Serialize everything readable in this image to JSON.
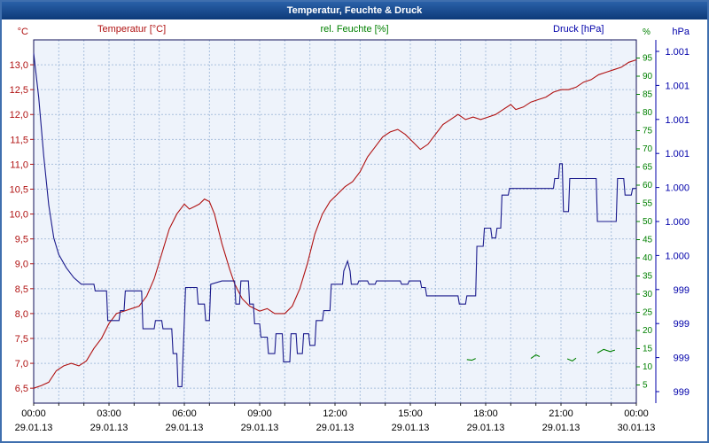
{
  "window": {
    "title": "Temperatur, Feuchte & Druck"
  },
  "header": {
    "temp_label": "Temperatur [°C]",
    "hum_label": "rel. Feuchte [%]",
    "pres_label": "Druck [hPa]"
  },
  "chart_data": {
    "type": "line",
    "title": "Temperatur, Feuchte & Druck",
    "style": {
      "plot_bg": "#eef3fb",
      "grid": "#a9c0dd",
      "plot_border": "#12125a"
    },
    "x_axis": {
      "hours_span": [
        0,
        24
      ],
      "tick_hours": [
        0,
        3,
        6,
        9,
        12,
        15,
        18,
        21,
        24
      ],
      "tick_times": [
        "00:00",
        "03:00",
        "06:00",
        "09:00",
        "12:00",
        "15:00",
        "18:00",
        "21:00",
        "00:00"
      ],
      "tick_dates": [
        "29.01.13",
        "29.01.13",
        "29.01.13",
        "29.01.13",
        "29.01.13",
        "29.01.13",
        "29.01.13",
        "29.01.13",
        "30.01.13"
      ]
    },
    "axes": {
      "temperature": {
        "unit": "°C",
        "color": "#b01212",
        "min": 6.2,
        "max": 13.5,
        "tick_values": [
          13.0,
          12.5,
          12.0,
          11.5,
          11.0,
          10.5,
          10.0,
          9.5,
          9.0,
          8.5,
          8.0,
          7.5,
          7.0,
          6.5
        ],
        "tick_labels": [
          "13,0",
          "12,5",
          "12,0",
          "11,5",
          "11,0",
          "10,5",
          "10,0",
          "9,5",
          "9,0",
          "8,5",
          "8,0",
          "7,5",
          "7,0",
          "6,5"
        ]
      },
      "humidity": {
        "unit": "%",
        "color": "#008000",
        "min": 0,
        "max": 100,
        "tick_values": [
          95,
          90,
          85,
          80,
          75,
          70,
          65,
          60,
          55,
          50,
          45,
          40,
          35,
          30,
          25,
          20,
          15,
          10,
          5
        ],
        "tick_labels": [
          "95",
          "90",
          "85",
          "80",
          "75",
          "70",
          "65",
          "60",
          "55",
          "50",
          "45",
          "40",
          "35",
          "30",
          "25",
          "20",
          "15",
          "10",
          "5"
        ]
      },
      "pressure": {
        "unit": "hPa",
        "color": "#0000aa",
        "min": 999.0,
        "max": 1001.2,
        "tick_labels": [
          "1.001",
          "1.001",
          "1.001",
          "1.001",
          "1.000",
          "1.000",
          "1.000",
          "999",
          "999",
          "999",
          "999"
        ]
      }
    },
    "series": [
      {
        "key": "temperatur",
        "name": "Temperatur",
        "axis": "temperature",
        "color": "#b01212",
        "segments": [
          [
            [
              0,
              6.5
            ],
            [
              0.3,
              6.55
            ],
            [
              0.6,
              6.62
            ],
            [
              0.9,
              6.85
            ],
            [
              1.2,
              6.95
            ],
            [
              1.5,
              7.0
            ],
            [
              1.8,
              6.95
            ],
            [
              2.1,
              7.05
            ],
            [
              2.4,
              7.3
            ],
            [
              2.7,
              7.5
            ],
            [
              3.0,
              7.8
            ],
            [
              3.3,
              8.0
            ],
            [
              3.6,
              8.05
            ],
            [
              3.9,
              8.1
            ],
            [
              4.2,
              8.15
            ],
            [
              4.5,
              8.35
            ],
            [
              4.8,
              8.7
            ],
            [
              5.1,
              9.2
            ],
            [
              5.4,
              9.7
            ],
            [
              5.7,
              10.0
            ],
            [
              6.0,
              10.2
            ],
            [
              6.2,
              10.1
            ],
            [
              6.4,
              10.15
            ],
            [
              6.6,
              10.2
            ],
            [
              6.8,
              10.3
            ],
            [
              7.0,
              10.25
            ],
            [
              7.2,
              10.0
            ],
            [
              7.5,
              9.4
            ],
            [
              7.8,
              8.9
            ],
            [
              8.0,
              8.6
            ],
            [
              8.3,
              8.3
            ],
            [
              8.6,
              8.15
            ],
            [
              9.0,
              8.05
            ],
            [
              9.3,
              8.1
            ],
            [
              9.6,
              8.0
            ],
            [
              10.0,
              8.0
            ],
            [
              10.3,
              8.15
            ],
            [
              10.6,
              8.5
            ],
            [
              10.9,
              9.0
            ],
            [
              11.2,
              9.6
            ],
            [
              11.5,
              10.0
            ],
            [
              11.8,
              10.25
            ],
            [
              12.1,
              10.4
            ],
            [
              12.4,
              10.55
            ],
            [
              12.7,
              10.65
            ],
            [
              13.0,
              10.85
            ],
            [
              13.3,
              11.15
            ],
            [
              13.6,
              11.35
            ],
            [
              13.9,
              11.55
            ],
            [
              14.2,
              11.65
            ],
            [
              14.5,
              11.7
            ],
            [
              14.8,
              11.6
            ],
            [
              15.1,
              11.45
            ],
            [
              15.4,
              11.3
            ],
            [
              15.7,
              11.4
            ],
            [
              16.0,
              11.6
            ],
            [
              16.3,
              11.8
            ],
            [
              16.6,
              11.9
            ],
            [
              16.9,
              12.0
            ],
            [
              17.2,
              11.9
            ],
            [
              17.5,
              11.95
            ],
            [
              17.8,
              11.9
            ],
            [
              18.1,
              11.95
            ],
            [
              18.4,
              12.0
            ],
            [
              18.7,
              12.1
            ],
            [
              19.0,
              12.2
            ],
            [
              19.2,
              12.1
            ],
            [
              19.5,
              12.15
            ],
            [
              19.8,
              12.25
            ],
            [
              20.1,
              12.3
            ],
            [
              20.4,
              12.35
            ],
            [
              20.7,
              12.45
            ],
            [
              21.0,
              12.5
            ],
            [
              21.3,
              12.5
            ],
            [
              21.6,
              12.55
            ],
            [
              21.9,
              12.65
            ],
            [
              22.2,
              12.7
            ],
            [
              22.5,
              12.8
            ],
            [
              22.8,
              12.85
            ],
            [
              23.1,
              12.9
            ],
            [
              23.4,
              12.95
            ],
            [
              23.7,
              13.05
            ],
            [
              24,
              13.1
            ]
          ]
        ]
      },
      {
        "key": "feuchte",
        "name": "rel. Feuchte",
        "axis": "humidity",
        "color": "#008000",
        "segments": [
          [
            [
              17.25,
              12.0
            ],
            [
              17.45,
              11.8
            ],
            [
              17.6,
              12.3
            ]
          ],
          [
            [
              19.8,
              12.3
            ],
            [
              20.0,
              13.3
            ],
            [
              20.15,
              12.8
            ]
          ],
          [
            [
              21.25,
              12.2
            ],
            [
              21.45,
              11.6
            ],
            [
              21.6,
              12.4
            ]
          ],
          [
            [
              22.45,
              13.8
            ],
            [
              22.7,
              14.8
            ],
            [
              22.95,
              14.2
            ],
            [
              23.15,
              14.6
            ]
          ]
        ]
      },
      {
        "key": "druck",
        "name": "Druck",
        "axis": "pressure",
        "color": "#1a1a8c",
        "segments": [
          [
            [
              0,
              1001.12
            ],
            [
              0.2,
              1000.85
            ],
            [
              0.4,
              1000.5
            ],
            [
              0.6,
              1000.2
            ],
            [
              0.8,
              1000.0
            ],
            [
              1.0,
              999.9
            ],
            [
              1.3,
              999.82
            ],
            [
              1.6,
              999.76
            ],
            [
              1.9,
              999.72
            ],
            [
              2.4,
              999.72
            ],
            [
              2.45,
              999.68
            ],
            [
              2.9,
              999.68
            ],
            [
              2.95,
              999.5
            ],
            [
              3.4,
              999.5
            ],
            [
              3.45,
              999.56
            ],
            [
              3.6,
              999.56
            ],
            [
              3.65,
              999.68
            ],
            [
              4.3,
              999.68
            ],
            [
              4.35,
              999.45
            ],
            [
              4.8,
              999.45
            ],
            [
              4.85,
              999.5
            ],
            [
              5.1,
              999.5
            ],
            [
              5.15,
              999.45
            ],
            [
              5.5,
              999.45
            ],
            [
              5.55,
              999.3
            ],
            [
              5.7,
              999.3
            ],
            [
              5.75,
              999.1
            ],
            [
              5.9,
              999.1
            ],
            [
              5.95,
              999.3
            ],
            [
              6.0,
              999.5
            ],
            [
              6.05,
              999.7
            ],
            [
              6.5,
              999.7
            ],
            [
              6.55,
              999.6
            ],
            [
              6.8,
              999.6
            ],
            [
              6.85,
              999.5
            ],
            [
              7.0,
              999.5
            ],
            [
              7.05,
              999.72
            ],
            [
              7.5,
              999.74
            ],
            [
              8.0,
              999.74
            ],
            [
              8.05,
              999.6
            ],
            [
              8.2,
              999.6
            ],
            [
              8.25,
              999.74
            ],
            [
              8.55,
              999.74
            ],
            [
              8.6,
              999.6
            ],
            [
              8.75,
              999.6
            ],
            [
              8.8,
              999.48
            ],
            [
              9.0,
              999.48
            ],
            [
              9.05,
              999.4
            ],
            [
              9.3,
              999.4
            ],
            [
              9.35,
              999.3
            ],
            [
              9.6,
              999.3
            ],
            [
              9.65,
              999.42
            ],
            [
              9.9,
              999.42
            ],
            [
              9.95,
              999.25
            ],
            [
              10.2,
              999.25
            ],
            [
              10.25,
              999.42
            ],
            [
              10.45,
              999.42
            ],
            [
              10.5,
              999.3
            ],
            [
              10.7,
              999.3
            ],
            [
              10.75,
              999.42
            ],
            [
              10.95,
              999.42
            ],
            [
              11.0,
              999.35
            ],
            [
              11.2,
              999.35
            ],
            [
              11.25,
              999.5
            ],
            [
              11.5,
              999.5
            ],
            [
              11.55,
              999.56
            ],
            [
              11.8,
              999.56
            ],
            [
              11.85,
              999.72
            ],
            [
              12.3,
              999.72
            ],
            [
              12.35,
              999.8
            ],
            [
              12.5,
              999.86
            ],
            [
              12.6,
              999.8
            ],
            [
              12.65,
              999.72
            ],
            [
              12.9,
              999.72
            ],
            [
              12.95,
              999.74
            ],
            [
              13.3,
              999.74
            ],
            [
              13.35,
              999.72
            ],
            [
              13.6,
              999.72
            ],
            [
              13.65,
              999.74
            ],
            [
              14.6,
              999.74
            ],
            [
              14.65,
              999.72
            ],
            [
              14.9,
              999.72
            ],
            [
              14.95,
              999.74
            ],
            [
              15.4,
              999.74
            ],
            [
              15.45,
              999.7
            ],
            [
              15.6,
              999.7
            ],
            [
              15.65,
              999.65
            ],
            [
              16.9,
              999.65
            ],
            [
              16.95,
              999.6
            ],
            [
              17.2,
              999.6
            ],
            [
              17.25,
              999.65
            ],
            [
              17.6,
              999.65
            ],
            [
              17.65,
              999.95
            ],
            [
              17.9,
              999.95
            ],
            [
              17.95,
              1000.06
            ],
            [
              18.2,
              1000.06
            ],
            [
              18.25,
              1000.0
            ],
            [
              18.4,
              1000.0
            ],
            [
              18.45,
              1000.06
            ],
            [
              18.6,
              1000.06
            ],
            [
              18.65,
              1000.26
            ],
            [
              18.9,
              1000.26
            ],
            [
              18.95,
              1000.3
            ],
            [
              20.7,
              1000.3
            ],
            [
              20.75,
              1000.36
            ],
            [
              20.9,
              1000.36
            ],
            [
              20.95,
              1000.45
            ],
            [
              21.05,
              1000.45
            ],
            [
              21.1,
              1000.16
            ],
            [
              21.3,
              1000.16
            ],
            [
              21.35,
              1000.36
            ],
            [
              22.4,
              1000.36
            ],
            [
              22.45,
              1000.1
            ],
            [
              23.2,
              1000.1
            ],
            [
              23.25,
              1000.36
            ],
            [
              23.5,
              1000.36
            ],
            [
              23.55,
              1000.26
            ],
            [
              23.8,
              1000.26
            ],
            [
              23.85,
              1000.3
            ],
            [
              24,
              1000.3
            ]
          ]
        ]
      }
    ]
  }
}
